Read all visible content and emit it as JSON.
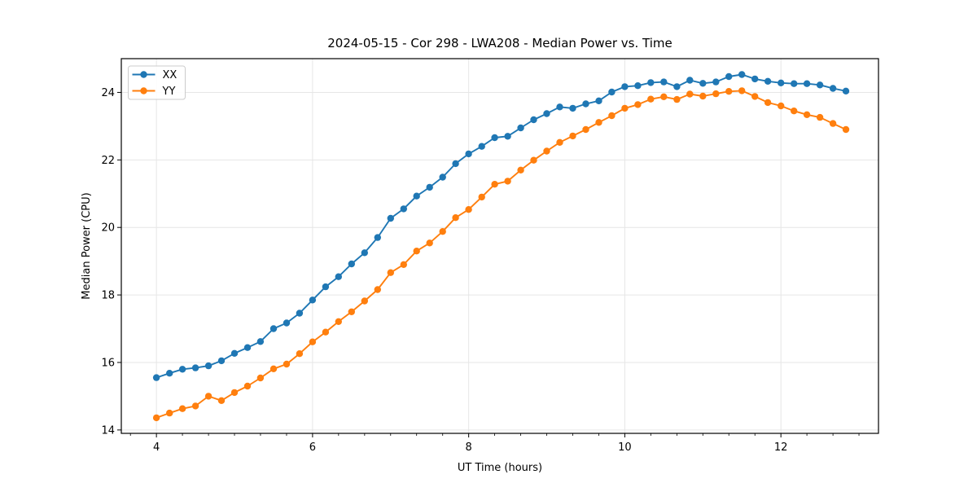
{
  "chart_data": {
    "type": "line",
    "title": "2024-05-15 - Cor 298 - LWA208 - Median Power vs. Time",
    "xlabel": "UT Time (hours)",
    "ylabel": "Median Power (CPU)",
    "xlim": [
      3.55,
      13.25
    ],
    "ylim": [
      13.9,
      25.0
    ],
    "x_ticks": [
      4,
      6,
      8,
      10,
      12
    ],
    "x_minor_ticks": [
      3.667,
      4.333,
      4.667,
      5,
      5.333,
      5.667,
      6.333,
      6.667,
      7,
      7.333,
      7.667,
      8.333,
      8.667,
      9,
      9.333,
      9.667,
      10.333,
      10.667,
      11,
      11.333,
      11.667,
      12.333,
      12.667,
      13
    ],
    "y_ticks": [
      14,
      16,
      18,
      20,
      22,
      24
    ],
    "grid": true,
    "legend_position": "upper-left",
    "x": [
      4.0,
      4.167,
      4.333,
      4.5,
      4.667,
      4.833,
      5.0,
      5.167,
      5.333,
      5.5,
      5.667,
      5.833,
      6.0,
      6.167,
      6.333,
      6.5,
      6.667,
      6.833,
      7.0,
      7.167,
      7.333,
      7.5,
      7.667,
      7.833,
      8.0,
      8.167,
      8.333,
      8.5,
      8.667,
      8.833,
      9.0,
      9.167,
      9.333,
      9.5,
      9.667,
      9.833,
      10.0,
      10.167,
      10.333,
      10.5,
      10.667,
      10.833,
      11.0,
      11.167,
      11.333,
      11.5,
      11.667,
      11.833,
      12.0,
      12.167,
      12.333,
      12.5,
      12.667,
      12.833
    ],
    "series": [
      {
        "name": "XX",
        "color": "#1f77b4",
        "values": [
          15.55,
          15.68,
          15.8,
          15.84,
          15.9,
          16.05,
          16.27,
          16.44,
          16.62,
          17.0,
          17.17,
          17.46,
          17.85,
          18.24,
          18.54,
          18.92,
          19.25,
          19.7,
          20.27,
          20.55,
          20.93,
          21.19,
          21.49,
          21.89,
          22.18,
          22.4,
          22.66,
          22.7,
          22.95,
          23.19,
          23.37,
          23.57,
          23.53,
          23.66,
          23.75,
          24.01,
          24.17,
          24.2,
          24.29,
          24.31,
          24.17,
          24.36,
          24.27,
          24.31,
          24.47,
          24.53,
          24.4,
          24.33,
          24.28,
          24.26,
          24.26,
          24.22,
          24.12,
          24.04
        ]
      },
      {
        "name": "YY",
        "color": "#ff7f0e",
        "values": [
          14.36,
          14.5,
          14.63,
          14.71,
          15.0,
          14.87,
          15.11,
          15.3,
          15.54,
          15.81,
          15.95,
          16.26,
          16.61,
          16.9,
          17.21,
          17.5,
          17.82,
          18.16,
          18.66,
          18.9,
          19.3,
          19.54,
          19.88,
          20.29,
          20.53,
          20.9,
          21.28,
          21.37,
          21.7,
          21.99,
          22.26,
          22.52,
          22.71,
          22.9,
          23.11,
          23.31,
          23.53,
          23.64,
          23.8,
          23.87,
          23.79,
          23.95,
          23.89,
          23.96,
          24.03,
          24.05,
          23.88,
          23.7,
          23.6,
          23.45,
          23.34,
          23.26,
          23.08,
          22.9
        ]
      }
    ],
    "style": {
      "grid_color": "#e6e6e6",
      "spine_color": "#000000",
      "background": "#ffffff",
      "legend_border": "#cccccc"
    }
  }
}
